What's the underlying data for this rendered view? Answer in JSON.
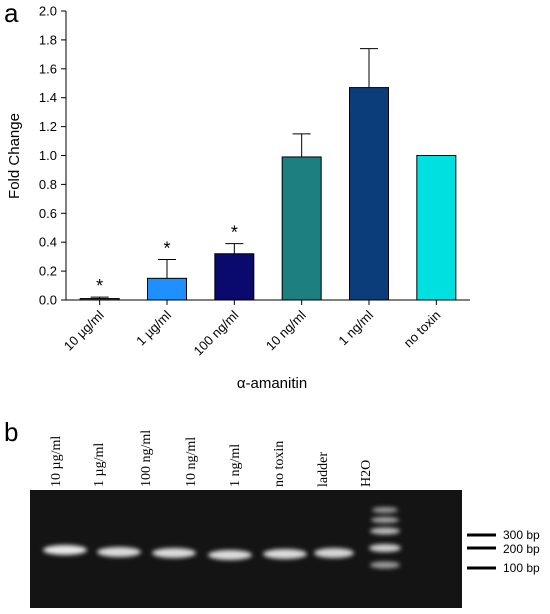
{
  "panel_a": {
    "letter": "a"
  },
  "panel_b": {
    "letter": "b"
  },
  "chart_data": [
    {
      "type": "bar",
      "categories": [
        "10 µg/ml",
        "1 µg/ml",
        "100 ng/ml",
        "10 ng/ml",
        "1 ng/ml",
        "no toxin"
      ],
      "values": [
        0.01,
        0.15,
        0.32,
        0.99,
        1.47,
        1.0
      ],
      "errors": [
        0.01,
        0.13,
        0.07,
        0.16,
        0.27,
        0
      ],
      "significance": [
        "*",
        "*",
        "*",
        "",
        "",
        ""
      ],
      "colors": [
        "#1f4fa8",
        "#1e90ff",
        "#0a0a6e",
        "#1c7f80",
        "#0a3d7a",
        "#00e0e0"
      ],
      "xlabel": "α-amanitin",
      "ylabel": "Fold Change",
      "ylim": [
        0,
        2.0
      ],
      "yticks": [
        "0.0",
        "0.2",
        "0.4",
        "0.6",
        "0.8",
        "1.0",
        "1.2",
        "1.4",
        "1.6",
        "1.8",
        "2.0"
      ],
      "grid": false
    }
  ],
  "gel": {
    "lanes": [
      "10 µg/ml",
      "1 µg/ml",
      "100 ng/ml",
      "10 ng/ml",
      "1 ng/ml",
      "no toxin",
      "ladder",
      "H2O"
    ],
    "ladder_markers": [
      "300 bp",
      "200 bp",
      "100 bp"
    ]
  }
}
